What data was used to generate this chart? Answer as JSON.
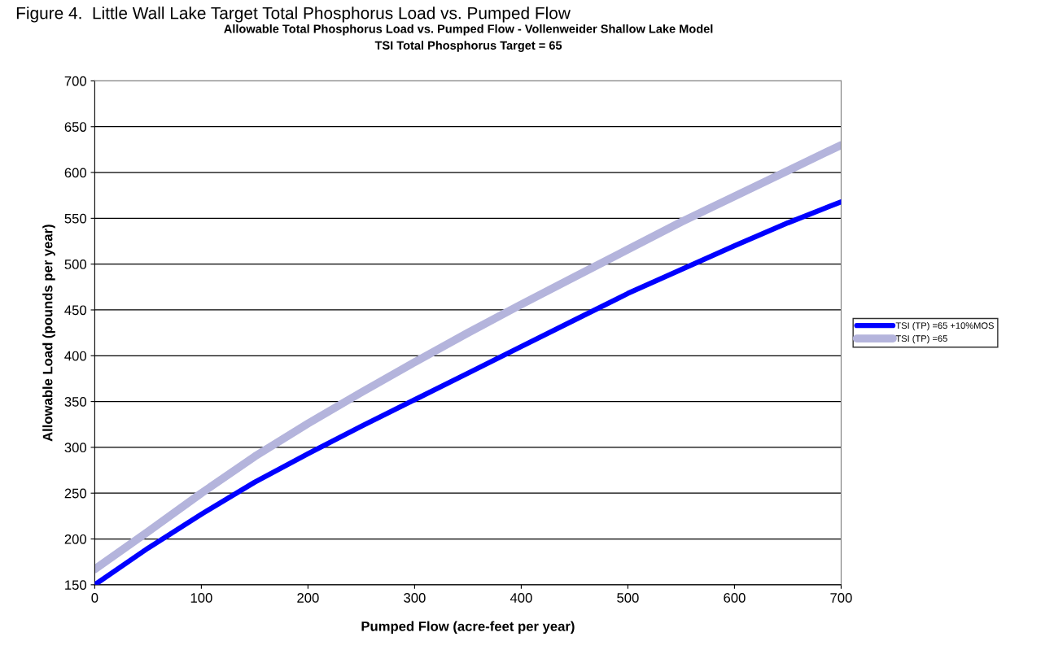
{
  "chart_data": {
    "type": "line",
    "title": "Allowable Total Phosphorus Load vs. Pumped Flow - Vollenweider Shallow Lake Model",
    "subtitle": "TSI Total Phosphorus Target = 65",
    "annotations": [
      "Figure 4.  Little Wall Lake Target Total Phosphorus Load vs. Pumped Flow"
    ],
    "xlabel": "Pumped Flow (acre-feet per year)",
    "ylabel": "Allowable Load (pounds per year)",
    "x": [
      0,
      50,
      100,
      150,
      200,
      250,
      300,
      350,
      400,
      450,
      500,
      550,
      600,
      650,
      700
    ],
    "series": [
      {
        "name": "TSI (TP) =65 +10%MOS",
        "color": "#0000ff",
        "values": [
          150,
          190,
          227,
          262,
          293,
          323,
          352,
          381,
          410,
          439,
          468,
          494,
          520,
          545,
          568
        ]
      },
      {
        "name": "TSI (TP) =65",
        "color": "#b4b4dc",
        "values": [
          167,
          208,
          250,
          290,
          326,
          360,
          393,
          425,
          456,
          486,
          516,
          546,
          574,
          602,
          630
        ]
      }
    ],
    "xlim": [
      0,
      700
    ],
    "xticks": [
      0,
      100,
      200,
      300,
      400,
      500,
      600,
      700
    ],
    "ylim": [
      150,
      700
    ],
    "yticks": [
      150,
      200,
      250,
      300,
      350,
      400,
      450,
      500,
      550,
      600,
      650,
      700
    ],
    "grid": "y",
    "legend": "right",
    "marker": "none",
    "line_style": "solid"
  }
}
